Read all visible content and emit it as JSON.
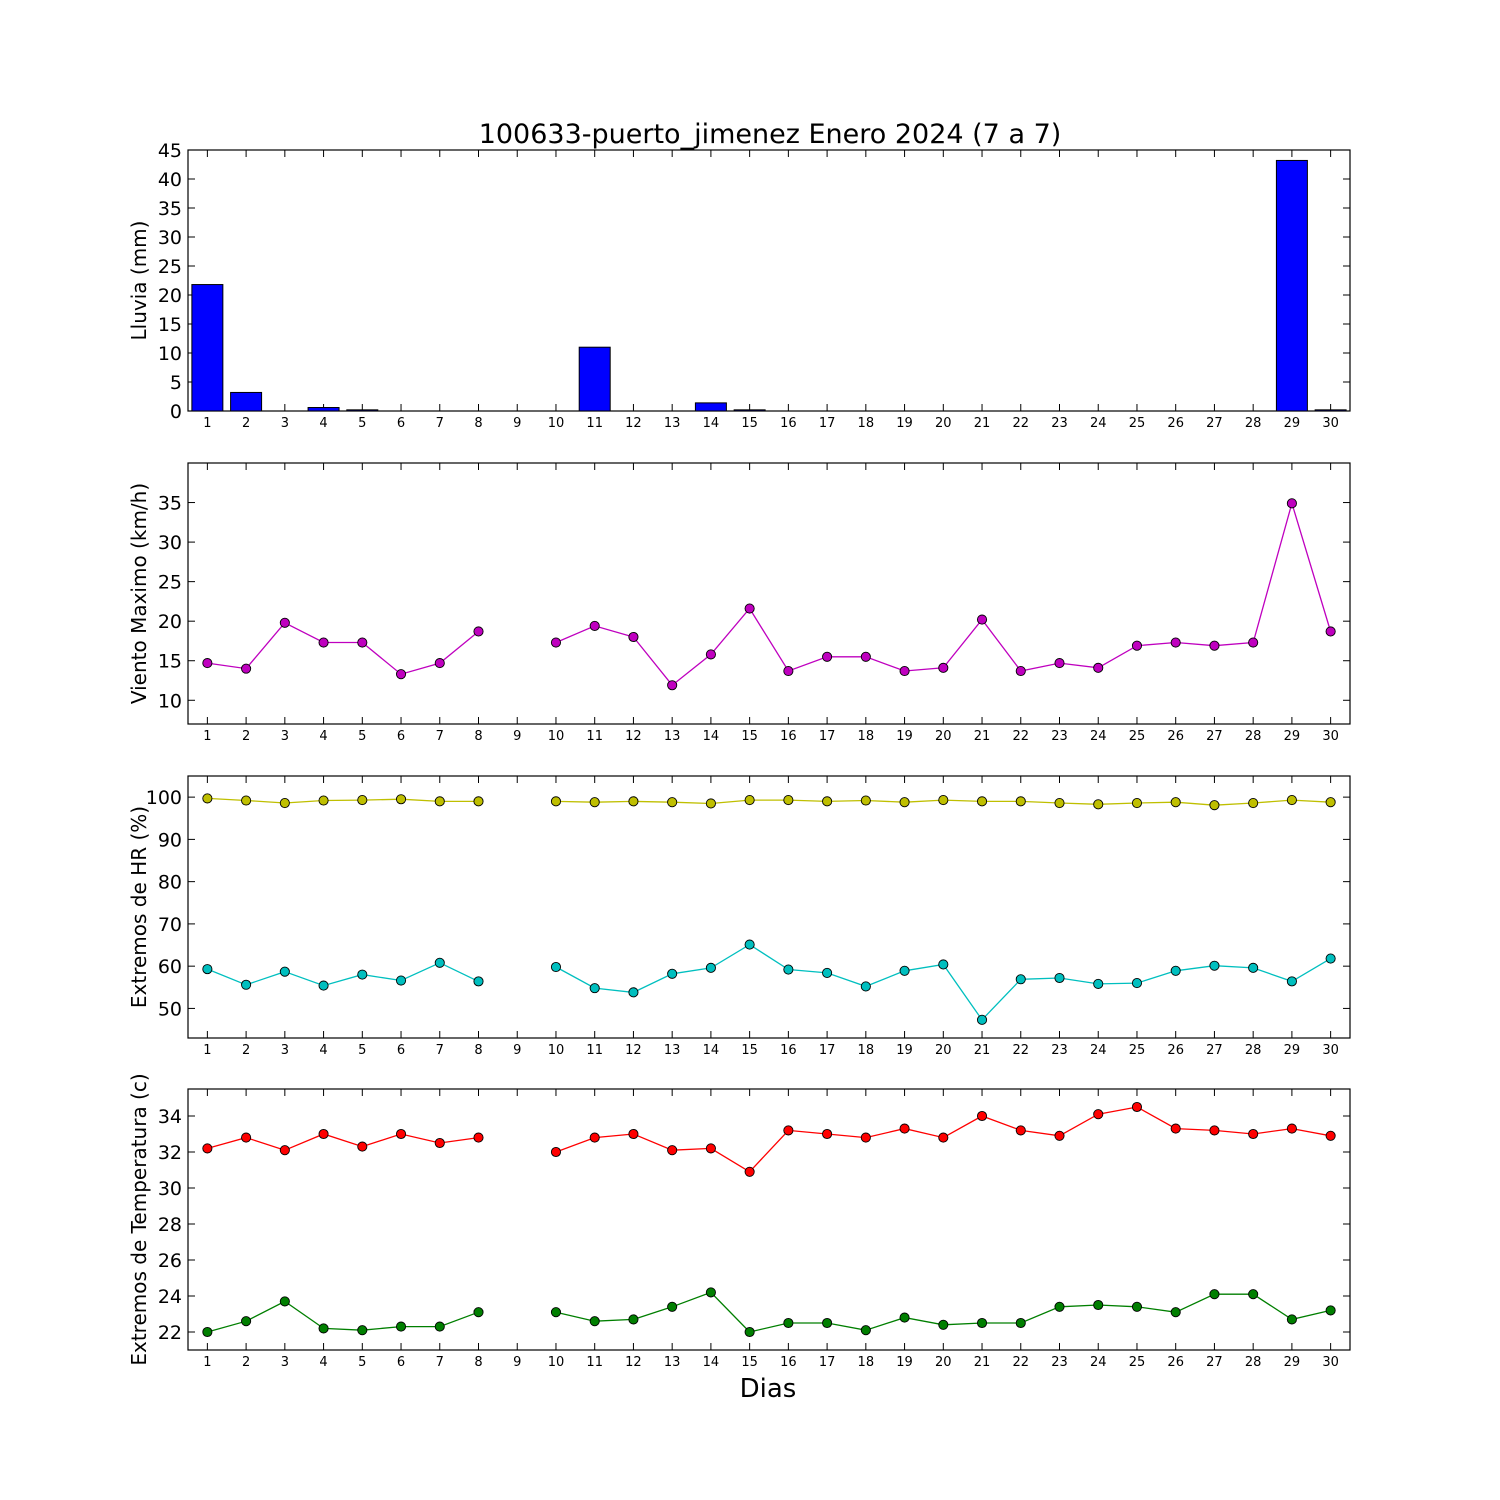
{
  "figure": {
    "title": "100633-puerto_jimenez Enero 2024  (7 a 7)",
    "xlabel": "Dias"
  },
  "chart_data": [
    {
      "type": "bar",
      "ylabel": "Lluvia (mm)",
      "ylim": [
        0,
        45
      ],
      "yticks": [
        0,
        5,
        10,
        15,
        20,
        25,
        30,
        35,
        40,
        45
      ],
      "x": [
        1,
        2,
        3,
        4,
        5,
        6,
        7,
        8,
        9,
        10,
        11,
        12,
        13,
        14,
        15,
        16,
        17,
        18,
        19,
        20,
        21,
        22,
        23,
        24,
        25,
        26,
        27,
        28,
        29,
        30
      ],
      "series": [
        {
          "color": "#0000ff",
          "values": [
            21.8,
            3.2,
            0,
            0.6,
            0.2,
            0,
            0,
            0,
            0,
            0,
            11.0,
            0,
            0,
            1.4,
            0.2,
            0,
            0,
            0,
            0,
            0,
            0,
            0,
            0,
            0,
            0,
            0,
            0,
            0,
            43.2,
            0.2
          ]
        }
      ]
    },
    {
      "type": "line",
      "ylabel": "Viento Maximo (km/h)",
      "ylim": [
        7,
        40
      ],
      "yticks": [
        10,
        15,
        20,
        25,
        30,
        35
      ],
      "x": [
        1,
        2,
        3,
        4,
        5,
        6,
        7,
        8,
        9,
        10,
        11,
        12,
        13,
        14,
        15,
        16,
        17,
        18,
        19,
        20,
        21,
        22,
        23,
        24,
        25,
        26,
        27,
        28,
        29,
        30
      ],
      "series": [
        {
          "color": "#bf00bf",
          "values": [
            14.7,
            14.0,
            19.8,
            17.3,
            17.3,
            13.3,
            14.7,
            18.7,
            null,
            17.3,
            19.4,
            18.0,
            11.9,
            15.8,
            21.6,
            13.7,
            15.5,
            15.5,
            13.7,
            14.1,
            20.2,
            13.7,
            14.7,
            14.1,
            16.9,
            17.3,
            16.9,
            17.3,
            34.9,
            18.7
          ]
        }
      ]
    },
    {
      "type": "line",
      "ylabel": "Extremos de HR (%)",
      "ylim": [
        43,
        105
      ],
      "yticks": [
        50,
        60,
        70,
        80,
        90,
        100
      ],
      "x": [
        1,
        2,
        3,
        4,
        5,
        6,
        7,
        8,
        9,
        10,
        11,
        12,
        13,
        14,
        15,
        16,
        17,
        18,
        19,
        20,
        21,
        22,
        23,
        24,
        25,
        26,
        27,
        28,
        29,
        30
      ],
      "series": [
        {
          "color": "#bfbf00",
          "values": [
            99.7,
            99.2,
            98.6,
            99.2,
            99.3,
            99.5,
            99.0,
            99.0,
            null,
            99.0,
            98.8,
            99.0,
            98.8,
            98.5,
            99.3,
            99.3,
            99.0,
            99.2,
            98.8,
            99.3,
            99.0,
            99.0,
            98.6,
            98.3,
            98.6,
            98.8,
            98.1,
            98.6,
            99.3,
            98.8
          ]
        },
        {
          "color": "#00bfbf",
          "values": [
            59.3,
            55.6,
            58.7,
            55.4,
            58.0,
            56.6,
            60.8,
            56.4,
            null,
            59.8,
            54.8,
            53.8,
            58.2,
            59.6,
            65.1,
            59.2,
            58.4,
            55.2,
            58.9,
            60.4,
            47.3,
            56.9,
            57.2,
            55.8,
            56.0,
            58.9,
            60.1,
            59.6,
            56.4,
            61.8
          ]
        }
      ]
    },
    {
      "type": "line",
      "ylabel": "Extremos de Temperatura (c)",
      "ylim": [
        21,
        35.5
      ],
      "yticks": [
        22,
        24,
        26,
        28,
        30,
        32,
        34
      ],
      "x": [
        1,
        2,
        3,
        4,
        5,
        6,
        7,
        8,
        9,
        10,
        11,
        12,
        13,
        14,
        15,
        16,
        17,
        18,
        19,
        20,
        21,
        22,
        23,
        24,
        25,
        26,
        27,
        28,
        29,
        30
      ],
      "series": [
        {
          "color": "#ff0000",
          "values": [
            32.2,
            32.8,
            32.1,
            33.0,
            32.3,
            33.0,
            32.5,
            32.8,
            null,
            32.0,
            32.8,
            33.0,
            32.1,
            32.2,
            30.9,
            33.2,
            33.0,
            32.8,
            33.3,
            32.8,
            34.0,
            33.2,
            32.9,
            34.1,
            34.5,
            33.3,
            33.2,
            33.0,
            33.3,
            32.9
          ]
        },
        {
          "color": "#007f00",
          "values": [
            22.0,
            22.6,
            23.7,
            22.2,
            22.1,
            22.3,
            22.3,
            23.1,
            null,
            23.1,
            22.6,
            22.7,
            23.4,
            24.2,
            22.0,
            22.5,
            22.5,
            22.1,
            22.8,
            22.4,
            22.5,
            22.5,
            23.4,
            23.5,
            23.4,
            23.1,
            24.1,
            24.1,
            22.7,
            23.2
          ]
        }
      ]
    }
  ]
}
